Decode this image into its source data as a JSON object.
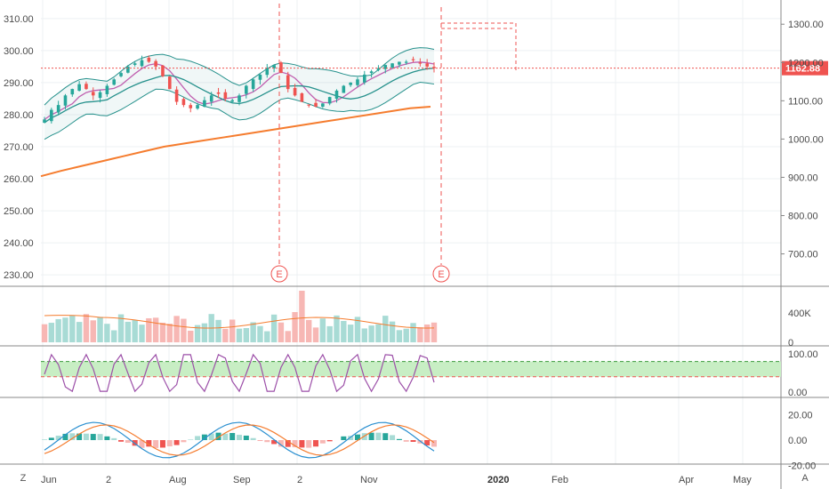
{
  "chart_data": {
    "type": "candlestick",
    "time_axis": {
      "labels": [
        "Jun",
        "2",
        "Aug",
        "Sep",
        "2",
        "Nov",
        "2020",
        "Feb",
        "Apr",
        "May"
      ],
      "bold": [
        "2020"
      ]
    },
    "price_panel": {
      "left_axis": {
        "ticks": [
          "230.00",
          "240.00",
          "250.00",
          "260.00",
          "270.00",
          "280.00",
          "290.00",
          "300.00",
          "310.00"
        ],
        "range": [
          227,
          313
        ]
      },
      "right_axis": {
        "ticks": [
          "700.00",
          "800.00",
          "900.00",
          "1000.00",
          "1100.00",
          "1200.00",
          "1300.00"
        ],
        "range": [
          620,
          1340
        ]
      },
      "last_price_label": "1162.88",
      "last_price_on_left_scale": 294.5,
      "earnings_markers": [
        {
          "label": "E"
        },
        {
          "label": "E"
        }
      ],
      "series": [
        {
          "name": "price",
          "kind": "candles",
          "close": [
            278.5,
            281.5,
            283,
            286,
            288,
            289.5,
            288,
            286,
            287,
            289,
            291,
            293,
            295,
            296,
            297,
            296.5,
            295,
            292,
            288,
            284,
            283,
            282,
            283,
            284.5,
            286,
            286.5,
            285,
            284.5,
            286,
            289,
            291,
            292.5,
            294.5,
            295.5,
            293,
            288,
            286,
            284,
            283,
            282.5,
            283.5,
            285.5,
            287.5,
            289,
            290,
            291,
            292.5,
            293.5,
            294.5,
            295.5,
            296,
            296.5,
            296.5,
            297,
            296,
            295,
            294.5
          ]
        },
        {
          "name": "sma200",
          "kind": "line",
          "color": "#f57c2e",
          "values": [
            260.8,
            262.5,
            264,
            265.5,
            267,
            268.5,
            270,
            271,
            272,
            273,
            274,
            275,
            276,
            277,
            278,
            279,
            280,
            281,
            282,
            282.5
          ]
        },
        {
          "name": "bollinger-upper",
          "kind": "line",
          "color": "#26918c"
        },
        {
          "name": "bollinger-lower",
          "kind": "line",
          "color": "#26918c"
        },
        {
          "name": "ma-pink",
          "kind": "line",
          "color": "#c060b0"
        },
        {
          "name": "ma-teal",
          "kind": "line",
          "color": "#26918c"
        }
      ]
    },
    "volume_panel": {
      "ticks": [
        "400K",
        "0"
      ]
    },
    "oscillator_panel": {
      "ticks": [
        "100.00",
        "0.00"
      ],
      "band": [
        40,
        80
      ]
    },
    "macd_panel": {
      "ticks": [
        "20.00",
        "0.00",
        "-20.00"
      ]
    }
  },
  "controls": {
    "left": "Z",
    "right": "A"
  },
  "colors": {
    "up": "#26a69a",
    "down": "#ef5350",
    "grid": "#eef0f3",
    "separator": "#888888"
  }
}
